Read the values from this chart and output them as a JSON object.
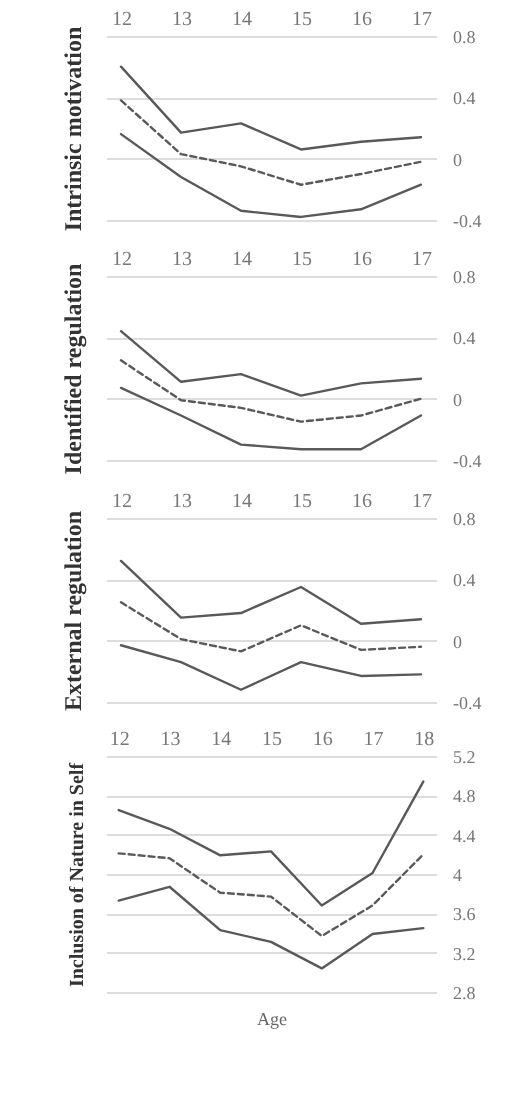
{
  "chart_data": [
    {
      "type": "line",
      "categories": [
        "12",
        "13",
        "14",
        "15",
        "16",
        "17"
      ],
      "ylabel": "Intrinsic motivation",
      "ylim": [
        -0.4,
        0.8
      ],
      "yticks": [
        -0.4,
        0,
        0.4,
        0.8
      ],
      "grid": "y",
      "series": [
        {
          "color": "#595959",
          "line_style": "solid",
          "values": [
            0.6,
            0.17,
            0.23,
            0.06,
            0.11,
            0.14
          ]
        },
        {
          "color": "#595959",
          "line_style": "dashed",
          "values": [
            0.38,
            0.03,
            -0.05,
            -0.17,
            -0.1,
            -0.02
          ]
        },
        {
          "color": "#595959",
          "line_style": "solid",
          "values": [
            0.16,
            -0.12,
            -0.34,
            -0.38,
            -0.33,
            -0.17
          ]
        }
      ]
    },
    {
      "type": "line",
      "categories": [
        "12",
        "13",
        "14",
        "15",
        "16",
        "17"
      ],
      "ylabel": "Identified regulation",
      "ylim": [
        -0.4,
        0.8
      ],
      "yticks": [
        -0.4,
        0,
        0.4,
        0.8
      ],
      "grid": "y",
      "series": [
        {
          "color": "#595959",
          "line_style": "solid",
          "values": [
            0.44,
            0.11,
            0.16,
            0.02,
            0.1,
            0.13
          ]
        },
        {
          "color": "#595959",
          "line_style": "dashed",
          "values": [
            0.25,
            -0.01,
            -0.06,
            -0.15,
            -0.11,
            0.0
          ]
        },
        {
          "color": "#595959",
          "line_style": "solid",
          "values": [
            0.07,
            -0.11,
            -0.3,
            -0.33,
            -0.33,
            -0.11
          ]
        }
      ]
    },
    {
      "type": "line",
      "categories": [
        "12",
        "13",
        "14",
        "15",
        "16",
        "17"
      ],
      "ylabel": "External regulation",
      "ylim": [
        -0.4,
        0.8
      ],
      "yticks": [
        -0.4,
        0,
        0.4,
        0.8
      ],
      "grid": "y",
      "series": [
        {
          "color": "#595959",
          "line_style": "solid",
          "values": [
            0.52,
            0.15,
            0.18,
            0.35,
            0.11,
            0.14
          ]
        },
        {
          "color": "#595959",
          "line_style": "dashed",
          "values": [
            0.25,
            0.01,
            -0.07,
            0.1,
            -0.06,
            -0.04
          ]
        },
        {
          "color": "#595959",
          "line_style": "solid",
          "values": [
            -0.03,
            -0.14,
            -0.32,
            -0.14,
            -0.23,
            -0.22
          ]
        }
      ]
    },
    {
      "type": "line",
      "categories": [
        "12",
        "13",
        "14",
        "15",
        "16",
        "17",
        "18"
      ],
      "xlabel": "Age",
      "ylabel": "Inclusion of Nature in Self",
      "ylim": [
        2.8,
        5.2
      ],
      "yticks": [
        2.8,
        3.2,
        3.6,
        4,
        4.4,
        4.8,
        5.2
      ],
      "grid": "y",
      "series": [
        {
          "color": "#595959",
          "line_style": "solid",
          "values": [
            4.65,
            4.46,
            4.19,
            4.23,
            3.68,
            4.01,
            4.94
          ]
        },
        {
          "color": "#595959",
          "line_style": "dashed",
          "values": [
            4.21,
            4.16,
            3.81,
            3.77,
            3.37,
            3.68,
            4.2
          ]
        },
        {
          "color": "#595959",
          "line_style": "solid",
          "values": [
            3.73,
            3.87,
            3.43,
            3.31,
            3.04,
            3.39,
            3.45
          ]
        }
      ]
    }
  ]
}
